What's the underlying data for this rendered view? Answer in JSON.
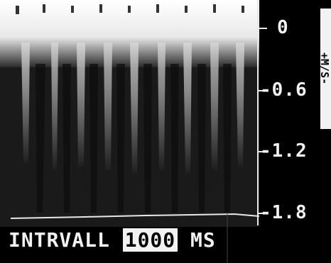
{
  "scale": {
    "labels": [
      "0",
      "-0.6",
      "-1.2",
      "-1.8"
    ]
  },
  "side_label": "+M/S-",
  "bottom": {
    "label": "INTRVALL",
    "value": "1000",
    "unit": "MS"
  }
}
